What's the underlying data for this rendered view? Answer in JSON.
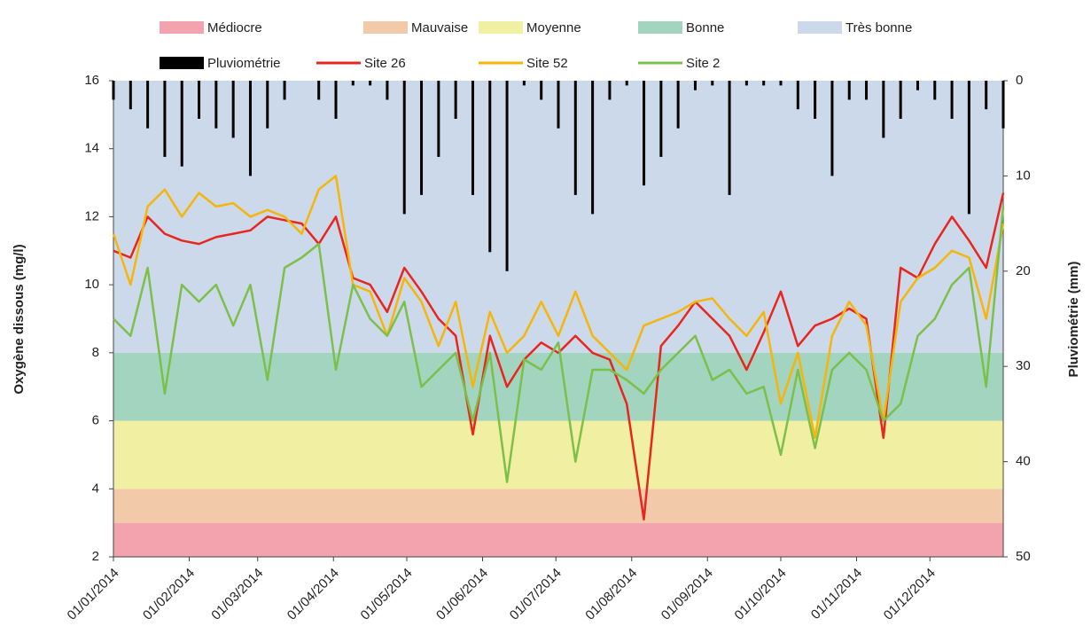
{
  "chart_data": {
    "type": "line",
    "y_label": "Oxygène dissous (mg/l)",
    "y2_label": "Pluviométrie (mm)",
    "ylim": [
      2,
      16
    ],
    "yticks": [
      2,
      4,
      6,
      8,
      10,
      12,
      14,
      16
    ],
    "y2lim": [
      0,
      50
    ],
    "y2ticks": [
      0,
      10,
      20,
      30,
      40,
      50
    ],
    "y2_inverted": true,
    "xlim": [
      "01/01/2014",
      "31/12/2014"
    ],
    "xticks": [
      "01/01/2014",
      "01/02/2014",
      "01/03/2014",
      "01/04/2014",
      "01/05/2014",
      "01/06/2014",
      "01/07/2014",
      "01/08/2014",
      "01/09/2014",
      "01/10/2014",
      "01/11/2014",
      "01/12/2014"
    ],
    "bands": [
      {
        "name": "Médiocre",
        "color": "#f2a3ad",
        "from": 2,
        "to": 3
      },
      {
        "name": "Mauvaise",
        "color": "#f3caa9",
        "from": 3,
        "to": 4
      },
      {
        "name": "Moyenne",
        "color": "#f1efa2",
        "from": 4,
        "to": 6
      },
      {
        "name": "Bonne",
        "color": "#a2d4c0",
        "from": 6,
        "to": 8
      },
      {
        "name": "Très bonne",
        "color": "#cbd9ea",
        "from": 8,
        "to": 16
      }
    ],
    "x": [
      "01/01/2014",
      "08/01/2014",
      "15/01/2014",
      "22/01/2014",
      "29/01/2014",
      "05/02/2014",
      "12/02/2014",
      "19/02/2014",
      "26/02/2014",
      "05/03/2014",
      "12/03/2014",
      "19/03/2014",
      "26/03/2014",
      "02/04/2014",
      "09/04/2014",
      "16/04/2014",
      "23/04/2014",
      "30/04/2014",
      "07/05/2014",
      "14/05/2014",
      "21/05/2014",
      "28/05/2014",
      "04/06/2014",
      "11/06/2014",
      "18/06/2014",
      "25/06/2014",
      "02/07/2014",
      "09/07/2014",
      "16/07/2014",
      "23/07/2014",
      "30/07/2014",
      "06/08/2014",
      "13/08/2014",
      "20/08/2014",
      "27/08/2014",
      "03/09/2014",
      "10/09/2014",
      "17/09/2014",
      "24/09/2014",
      "01/10/2014",
      "08/10/2014",
      "15/10/2014",
      "22/10/2014",
      "29/10/2014",
      "05/11/2014",
      "12/11/2014",
      "19/11/2014",
      "26/11/2014",
      "03/12/2014",
      "10/12/2014",
      "17/12/2014",
      "24/12/2014",
      "31/12/2014"
    ],
    "series": [
      {
        "name": "Pluviométrie",
        "color": "#000000",
        "type": "bar",
        "axis": "y2",
        "values": [
          2,
          3,
          5,
          8,
          9,
          4,
          5,
          6,
          10,
          5,
          2,
          0,
          2,
          4,
          0.5,
          0.5,
          2,
          14,
          12,
          8,
          4,
          12,
          18,
          20,
          0.5,
          2,
          5,
          12,
          14,
          2,
          0.5,
          11,
          8,
          5,
          1,
          0.5,
          12,
          0.5,
          0.5,
          0.5,
          3,
          4,
          10,
          2,
          2,
          6,
          4,
          1,
          2,
          4,
          14,
          3,
          5
        ]
      },
      {
        "name": "Site 26",
        "color": "#e8261e",
        "values": [
          11.0,
          10.8,
          12.0,
          11.5,
          11.3,
          11.2,
          11.4,
          11.5,
          11.6,
          12.0,
          11.9,
          11.8,
          11.2,
          12.0,
          10.2,
          10.0,
          9.2,
          10.5,
          9.8,
          9.0,
          8.5,
          5.6,
          8.5,
          7.0,
          7.8,
          8.3,
          8.0,
          8.5,
          8.0,
          7.8,
          6.5,
          3.1,
          8.2,
          8.8,
          9.5,
          9.0,
          8.5,
          7.5,
          8.6,
          9.8,
          8.2,
          8.8,
          9.0,
          9.3,
          9.0,
          5.5,
          10.5,
          10.2,
          11.2,
          12.0,
          11.3,
          10.5,
          12.7
        ]
      },
      {
        "name": "Site 52",
        "color": "#f5b50a",
        "values": [
          11.5,
          10.0,
          12.3,
          12.8,
          12.0,
          12.7,
          12.3,
          12.4,
          12.0,
          12.2,
          12.0,
          11.5,
          12.8,
          13.2,
          10.0,
          9.8,
          8.5,
          10.2,
          9.5,
          8.2,
          9.5,
          7.0,
          9.2,
          8.0,
          8.5,
          9.5,
          8.5,
          9.8,
          8.5,
          8.0,
          7.5,
          8.8,
          9.0,
          9.2,
          9.5,
          9.6,
          9.0,
          8.5,
          9.2,
          6.5,
          8.0,
          5.5,
          8.5,
          9.5,
          8.8,
          6.0,
          9.5,
          10.2,
          10.5,
          11.0,
          10.8,
          9.0,
          11.8
        ]
      },
      {
        "name": "Site 2",
        "color": "#7cc04a",
        "values": [
          9.0,
          8.5,
          10.5,
          6.8,
          10.0,
          9.5,
          10.0,
          8.8,
          10.0,
          7.2,
          10.5,
          10.8,
          11.2,
          7.5,
          10.0,
          9.0,
          8.5,
          9.5,
          7.0,
          7.5,
          8.0,
          6.0,
          8.0,
          4.2,
          7.8,
          7.5,
          8.3,
          4.8,
          7.5,
          7.5,
          7.2,
          6.8,
          7.5,
          8.0,
          8.5,
          7.2,
          7.5,
          6.8,
          7.0,
          5.0,
          7.5,
          5.2,
          7.5,
          8.0,
          7.5,
          6.0,
          6.5,
          8.5,
          9.0,
          10.0,
          10.5,
          7.0,
          12.3
        ]
      }
    ]
  }
}
